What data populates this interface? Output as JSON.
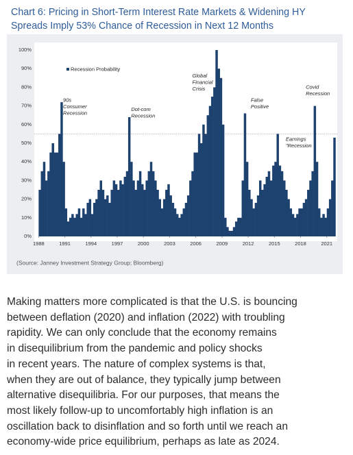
{
  "chart_data": {
    "type": "bar",
    "title": [
      "Chart 6:  Pricing in Short-Term Interest Rate Markets & Widening HY",
      "Spreads Imply 53% Chance of Recession in Next 12 Months"
    ],
    "series": [
      {
        "name": "Recession Probability",
        "color": "#1d426f"
      }
    ],
    "x": [
      1988,
      1988.25,
      1988.5,
      1988.75,
      1989,
      1989.25,
      1989.5,
      1989.75,
      1990,
      1990.25,
      1990.5,
      1990.75,
      1991,
      1991.25,
      1991.5,
      1991.75,
      1992,
      1992.25,
      1992.5,
      1992.75,
      1993,
      1993.25,
      1993.5,
      1993.75,
      1994,
      1994.25,
      1994.5,
      1994.75,
      1995,
      1995.25,
      1995.5,
      1995.75,
      1996,
      1996.25,
      1996.5,
      1996.75,
      1997,
      1997.25,
      1997.5,
      1997.75,
      1998,
      1998.25,
      1998.5,
      1998.75,
      1999,
      1999.25,
      1999.5,
      1999.75,
      2000,
      2000.25,
      2000.5,
      2000.75,
      2001,
      2001.25,
      2001.5,
      2001.75,
      2002,
      2002.25,
      2002.5,
      2002.75,
      2003,
      2003.25,
      2003.5,
      2003.75,
      2004,
      2004.25,
      2004.5,
      2004.75,
      2005,
      2005.25,
      2005.5,
      2005.75,
      2006,
      2006.25,
      2006.5,
      2006.75,
      2007,
      2007.25,
      2007.5,
      2007.75,
      2008,
      2008.25,
      2008.5,
      2008.75,
      2009,
      2009.25,
      2009.5,
      2009.75,
      2010,
      2010.25,
      2010.5,
      2010.75,
      2011,
      2011.25,
      2011.5,
      2011.75,
      2012,
      2012.25,
      2012.5,
      2012.75,
      2013,
      2013.25,
      2013.5,
      2013.75,
      2014,
      2014.25,
      2014.5,
      2014.75,
      2015,
      2015.25,
      2015.5,
      2015.75,
      2016,
      2016.25,
      2016.5,
      2016.75,
      2017,
      2017.25,
      2017.5,
      2017.75,
      2018,
      2018.25,
      2018.5,
      2018.75,
      2019,
      2019.25,
      2019.5,
      2019.75,
      2020,
      2020.25,
      2020.5,
      2020.75,
      2021,
      2021.25,
      2021.5,
      2021.75
    ],
    "values": [
      25,
      35,
      40,
      30,
      35,
      45,
      50,
      45,
      45,
      55,
      72,
      40,
      15,
      8,
      10,
      12,
      10,
      12,
      15,
      10,
      15,
      12,
      18,
      20,
      12,
      18,
      20,
      25,
      30,
      25,
      20,
      22,
      18,
      25,
      30,
      28,
      25,
      30,
      28,
      32,
      35,
      64,
      40,
      30,
      25,
      30,
      35,
      28,
      25,
      30,
      35,
      40,
      35,
      30,
      25,
      20,
      15,
      20,
      25,
      28,
      22,
      18,
      15,
      12,
      10,
      12,
      15,
      18,
      22,
      30,
      35,
      45,
      45,
      55,
      50,
      60,
      55,
      65,
      70,
      75,
      80,
      100,
      90,
      85,
      60,
      10,
      5,
      3,
      3,
      5,
      8,
      10,
      10,
      30,
      66,
      40,
      25,
      20,
      15,
      18,
      22,
      30,
      25,
      28,
      32,
      35,
      30,
      38,
      40,
      55,
      38,
      35,
      30,
      25,
      20,
      15,
      12,
      10,
      12,
      15,
      15,
      18,
      20,
      25,
      30,
      35,
      70,
      40,
      15,
      10,
      12,
      10,
      15,
      20,
      30,
      53
    ],
    "xlim": [
      1987.5,
      2022.2
    ],
    "xticks": [
      1988,
      1991,
      1994,
      1997,
      2000,
      2003,
      2006,
      2009,
      2012,
      2015,
      2018,
      2021
    ],
    "ylim": [
      0,
      100
    ],
    "yticks": [
      {
        "value": 0,
        "label": "0%"
      },
      {
        "value": 10,
        "label": "10%"
      },
      {
        "value": 20,
        "label": "20%"
      },
      {
        "value": 30,
        "label": "30%"
      },
      {
        "value": 40,
        "label": "40%"
      },
      {
        "value": 50,
        "label": "50%"
      },
      {
        "value": 60,
        "label": "60%"
      },
      {
        "value": 70,
        "label": "70%"
      },
      {
        "value": 80,
        "label": "80%"
      },
      {
        "value": 90,
        "label": "90%"
      },
      {
        "value": 100,
        "label": "100%"
      }
    ],
    "reference_line": 55,
    "legend": "upper left",
    "annotations": [
      {
        "lines": [
          "90s",
          "Consumer",
          "Recession"
        ],
        "x": 1990.8,
        "y": 73
      },
      {
        "lines": [
          "Dot-com",
          "Recession"
        ],
        "x": 1998.6,
        "y": 68
      },
      {
        "lines": [
          "Global",
          "Financial",
          "Crisis"
        ],
        "x": 2005.6,
        "y": 86
      },
      {
        "lines": [
          "False",
          "Positive"
        ],
        "x": 2012.3,
        "y": 73
      },
      {
        "lines": [
          "Earnings",
          "\"Recession"
        ],
        "x": 2016.3,
        "y": 52
      },
      {
        "lines": [
          "Covid",
          "Recession"
        ],
        "x": 2018.6,
        "y": 80
      }
    ]
  },
  "source": "(Source: Janney Investment Strategy Group; Bloomberg)",
  "paragraph": [
    "Making matters more complicated is that the U.S. is bouncing",
    "between deflation (2020) and inflation (2022) with troubling",
    "rapidity. We can only conclude that the economy remains",
    "in disequilibrium from the pandemic and policy shocks",
    "in recent years. The nature of complex systems is that,",
    "when they are out of balance, they typically jump between",
    "alternative disequilibria. For our purposes, that means the",
    "most likely follow-up to uncomfortably high inflation is an",
    "oscillation back to disinflation and so forth until we reach an",
    "economy-wide price equilibrium, perhaps as late as 2024."
  ]
}
